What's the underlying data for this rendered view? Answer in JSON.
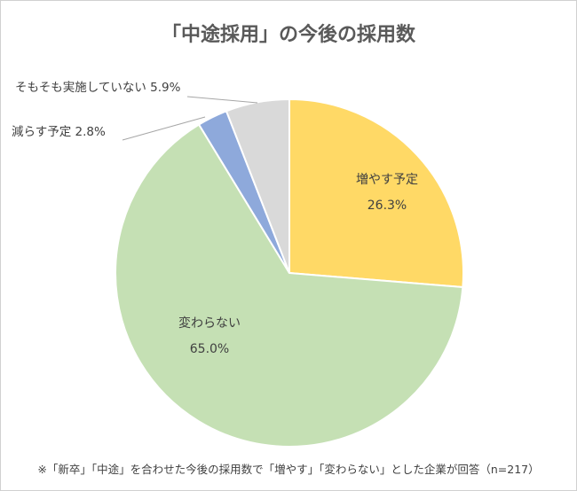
{
  "chart_data": {
    "type": "pie",
    "title": "「中途採用」の今後の採用数",
    "slices": [
      {
        "label": "増やす予定",
        "value": 26.3,
        "value_label": "26.3%",
        "color": "#FFD966"
      },
      {
        "label": "変わらない",
        "value": 65.0,
        "value_label": "65.0%",
        "color": "#C5E0B4"
      },
      {
        "label": "減らす予定",
        "value": 2.8,
        "value_label": "2.8%",
        "color": "#8EA9DB"
      },
      {
        "label": "そもそも実施していない",
        "value": 5.9,
        "value_label": "5.9%",
        "color": "#D9D9D9"
      }
    ],
    "legend": "none"
  },
  "footnote": "※「新卒」「中途」を合わせた今後の採用数で「増やす」「変わらない」とした企業が回答（n=217）"
}
